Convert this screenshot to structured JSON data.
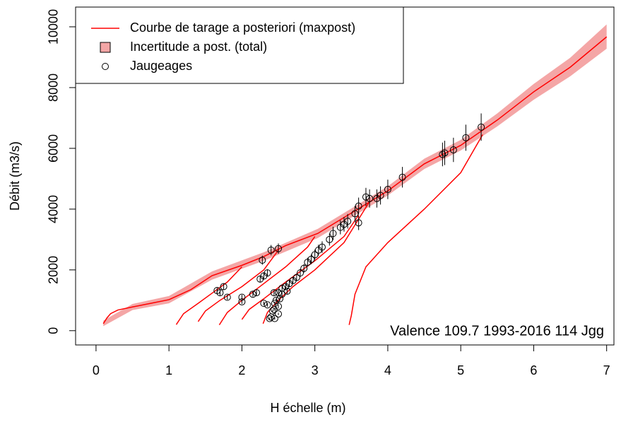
{
  "chart_data": {
    "type": "rating-curve",
    "xlabel": "H échelle (m)",
    "ylabel": "Débit (m3/s)",
    "annotation": "Valence 109.7 1993-2016 114 Jgg",
    "xlim": [
      -0.28,
      7.1
    ],
    "ylim": [
      -470,
      10650
    ],
    "xticks": [
      0,
      1,
      2,
      3,
      4,
      5,
      6,
      7
    ],
    "yticks": [
      0,
      2000,
      4000,
      6000,
      8000,
      10000
    ],
    "legend": "top-left",
    "series": [
      {
        "name": "Courbe de tarage a posteriori (maxpost)",
        "type": "line",
        "color": "#ff0000",
        "x": [
          0.1,
          0.15,
          0.2,
          0.3,
          0.5,
          0.75,
          1.0,
          1.3,
          1.59,
          2.0,
          2.3,
          2.6,
          3.04,
          3.52,
          4.0,
          4.5,
          5.0,
          5.5,
          6.0,
          6.5,
          7.0,
          null,
          1.1,
          1.2,
          1.4,
          1.6,
          1.8,
          2.0,
          null,
          1.4,
          1.5,
          1.7,
          2.0,
          2.3,
          2.5,
          null,
          1.69,
          1.8,
          2.0,
          2.3,
          2.6,
          2.9,
          3.0,
          null,
          2.0,
          2.1,
          2.3,
          2.6,
          3.0,
          3.4,
          3.6,
          null,
          2.29,
          2.35,
          2.5,
          2.7,
          3.0,
          3.4,
          3.75,
          null,
          3.47,
          3.5,
          3.55,
          3.7,
          4.0,
          4.5,
          5.0,
          5.3
        ],
        "values": [
          230,
          420,
          560,
          680,
          780,
          900,
          1020,
          1350,
          1810,
          2150,
          2440,
          2800,
          3200,
          3900,
          4600,
          5490,
          6100,
          6930,
          7860,
          8670,
          9670,
          null,
          200,
          560,
          900,
          1250,
          1600,
          2100,
          null,
          300,
          650,
          1000,
          1450,
          2000,
          2650,
          null,
          190,
          600,
          1000,
          1550,
          2100,
          2750,
          3100,
          null,
          370,
          700,
          1050,
          1600,
          2300,
          3100,
          3800,
          null,
          230,
          600,
          1000,
          1450,
          2000,
          2900,
          4250,
          null,
          190,
          500,
          1200,
          2100,
          2900,
          4000,
          5200,
          6450
        ]
      },
      {
        "name": "Incertitude a post. (total)",
        "type": "band",
        "color": "#f08080",
        "x": [
          0.1,
          0.5,
          1.0,
          1.59,
          2.3,
          3.04,
          3.52,
          4.0,
          4.5,
          5.0,
          5.5,
          6.0,
          6.5,
          7.0
        ],
        "low": [
          150,
          680,
          900,
          1680,
          2300,
          3050,
          3750,
          4450,
          5320,
          5930,
          6720,
          7600,
          8370,
          9280
        ],
        "high": [
          330,
          880,
          1140,
          1950,
          2580,
          3350,
          4050,
          4750,
          5660,
          6280,
          7150,
          8120,
          8980,
          10080
        ]
      },
      {
        "name": "Jaugeages",
        "type": "scatter",
        "color": "#000000",
        "x": [
          2.28,
          2.4,
          2.5,
          1.66,
          1.7,
          1.75,
          1.8,
          2.0,
          2.0,
          2.15,
          2.2,
          2.25,
          2.3,
          2.35,
          2.3,
          2.35,
          2.38,
          2.4,
          2.42,
          2.44,
          2.45,
          2.47,
          2.5,
          2.44,
          2.5,
          2.52,
          2.55,
          2.55,
          2.6,
          2.62,
          2.65,
          2.7,
          2.75,
          2.8,
          2.85,
          2.9,
          2.95,
          3.0,
          3.05,
          3.1,
          3.2,
          3.25,
          3.35,
          3.4,
          3.45,
          3.55,
          3.6,
          3.6,
          3.7,
          3.75,
          3.85,
          3.9,
          4.0,
          4.2,
          4.75,
          4.78,
          4.9,
          5.07,
          5.28,
          2.45,
          2.5
        ],
        "values": [
          2320,
          2650,
          2700,
          1320,
          1250,
          1450,
          1100,
          1100,
          950,
          1200,
          1250,
          1700,
          1800,
          1900,
          900,
          850,
          400,
          450,
          650,
          700,
          900,
          1000,
          800,
          1250,
          1250,
          1050,
          1200,
          1400,
          1450,
          1300,
          1550,
          1650,
          1750,
          1900,
          2050,
          2250,
          2350,
          2500,
          2650,
          2750,
          3000,
          3200,
          3400,
          3500,
          3600,
          3850,
          3550,
          4100,
          4400,
          4350,
          4350,
          4450,
          4650,
          5050,
          5800,
          5850,
          5950,
          6350,
          6700,
          400,
          550
        ],
        "errors": [
          150,
          170,
          170,
          90,
          90,
          100,
          80,
          80,
          70,
          80,
          90,
          110,
          120,
          120,
          60,
          60,
          40,
          40,
          50,
          50,
          60,
          70,
          60,
          90,
          90,
          70,
          80,
          100,
          100,
          90,
          100,
          110,
          120,
          130,
          140,
          150,
          160,
          170,
          180,
          190,
          200,
          220,
          230,
          240,
          240,
          260,
          240,
          280,
          300,
          300,
          300,
          300,
          320,
          340,
          390,
          400,
          400,
          430,
          450,
          40,
          40
        ]
      }
    ]
  }
}
